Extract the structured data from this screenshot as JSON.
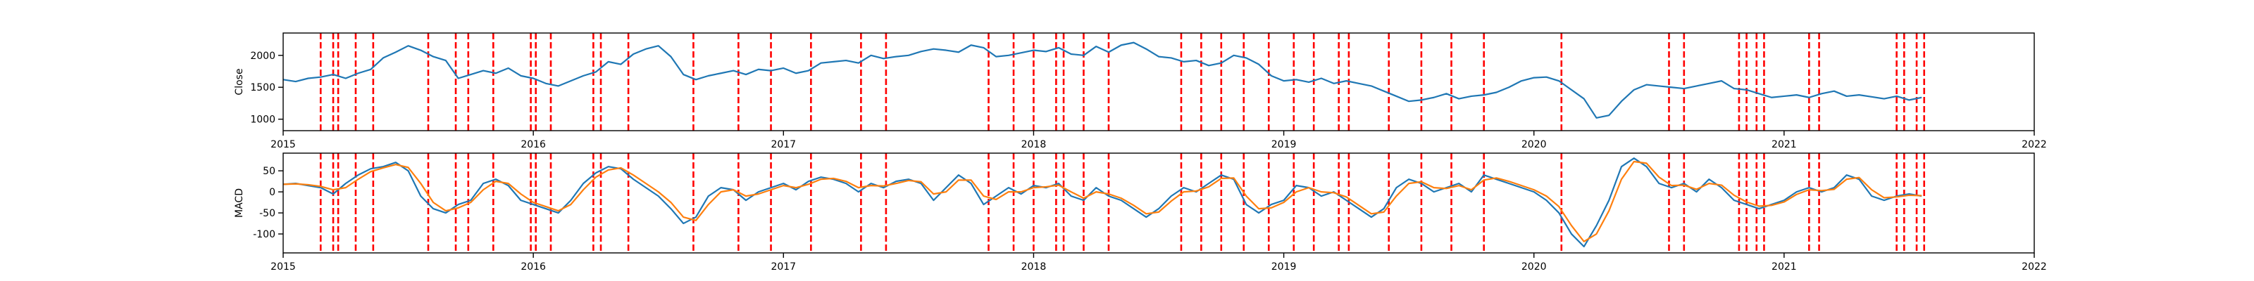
{
  "chart_data": [
    {
      "type": "line",
      "title": "",
      "xlabel": "",
      "ylabel": "Close",
      "xlim": [
        2015,
        2022
      ],
      "ylim": [
        820,
        2350
      ],
      "x_ticks": [
        2015,
        2016,
        2017,
        2018,
        2019,
        2020,
        2021,
        2022
      ],
      "y_ticks": [
        1000,
        1500,
        2000
      ],
      "grid": false,
      "series": [
        {
          "color": "#1f77b4",
          "x": [
            2015.0,
            2015.05,
            2015.1,
            2015.15,
            2015.2,
            2015.25,
            2015.3,
            2015.35,
            2015.4,
            2015.45,
            2015.5,
            2015.55,
            2015.6,
            2015.65,
            2015.7,
            2015.75,
            2015.8,
            2015.85,
            2015.9,
            2015.95,
            2016.0,
            2016.05,
            2016.1,
            2016.15,
            2016.2,
            2016.25,
            2016.3,
            2016.35,
            2016.4,
            2016.45,
            2016.5,
            2016.55,
            2016.6,
            2016.65,
            2016.7,
            2016.75,
            2016.8,
            2016.85,
            2016.9,
            2016.95,
            2017.0,
            2017.05,
            2017.1,
            2017.15,
            2017.2,
            2017.25,
            2017.3,
            2017.35,
            2017.4,
            2017.45,
            2017.5,
            2017.55,
            2017.6,
            2017.65,
            2017.7,
            2017.75,
            2017.8,
            2017.85,
            2017.9,
            2017.95,
            2018.0,
            2018.05,
            2018.1,
            2018.15,
            2018.2,
            2018.25,
            2018.3,
            2018.35,
            2018.4,
            2018.45,
            2018.5,
            2018.55,
            2018.6,
            2018.65,
            2018.7,
            2018.75,
            2018.8,
            2018.85,
            2018.9,
            2018.95,
            2019.0,
            2019.05,
            2019.1,
            2019.15,
            2019.2,
            2019.25,
            2019.3,
            2019.35,
            2019.4,
            2019.45,
            2019.5,
            2019.55,
            2019.6,
            2019.65,
            2019.7,
            2019.75,
            2019.8,
            2019.85,
            2019.9,
            2019.95,
            2020.0,
            2020.05,
            2020.1,
            2020.15,
            2020.2,
            2020.25,
            2020.3,
            2020.35,
            2020.4,
            2020.45,
            2020.5,
            2020.55,
            2020.6,
            2020.65,
            2020.7,
            2020.75,
            2020.8,
            2020.85,
            2020.9,
            2020.95,
            2021.0,
            2021.05,
            2021.1,
            2021.15,
            2021.2,
            2021.25,
            2021.3,
            2021.35,
            2021.4,
            2021.45,
            2021.5,
            2021.55
          ],
          "y": [
            1620,
            1590,
            1640,
            1660,
            1700,
            1640,
            1720,
            1780,
            1960,
            2050,
            2150,
            2080,
            1980,
            1920,
            1640,
            1700,
            1760,
            1720,
            1800,
            1680,
            1640,
            1560,
            1520,
            1600,
            1680,
            1740,
            1900,
            1860,
            2020,
            2100,
            2150,
            1980,
            1700,
            1620,
            1680,
            1720,
            1760,
            1700,
            1780,
            1760,
            1800,
            1720,
            1760,
            1880,
            1900,
            1920,
            1880,
            2000,
            1950,
            1980,
            2000,
            2060,
            2100,
            2080,
            2050,
            2160,
            2120,
            1980,
            2000,
            2040,
            2080,
            2060,
            2120,
            2020,
            2000,
            2140,
            2050,
            2160,
            2200,
            2100,
            1980,
            1960,
            1900,
            1920,
            1840,
            1880,
            2000,
            1960,
            1860,
            1680,
            1600,
            1620,
            1580,
            1640,
            1560,
            1600,
            1560,
            1520,
            1440,
            1360,
            1280,
            1300,
            1340,
            1400,
            1320,
            1360,
            1380,
            1420,
            1500,
            1600,
            1650,
            1660,
            1600,
            1460,
            1320,
            1020,
            1060,
            1280,
            1460,
            1540,
            1520,
            1500,
            1480,
            1520,
            1560,
            1600,
            1480,
            1460,
            1400,
            1340,
            1360,
            1380,
            1340,
            1400,
            1440,
            1360,
            1380,
            1350,
            1320,
            1360,
            1300,
            1340
          ]
        }
      ]
    },
    {
      "type": "line",
      "title": "",
      "xlabel": "",
      "ylabel": "MACD",
      "xlim": [
        2015,
        2022
      ],
      "ylim": [
        -145,
        92
      ],
      "x_ticks": [
        2015,
        2016,
        2017,
        2018,
        2019,
        2020,
        2021,
        2022
      ],
      "y_ticks": [
        -100,
        -50,
        0,
        50
      ],
      "grid": false,
      "series": [
        {
          "color": "#1f77b4",
          "x": [
            2015.0,
            2015.05,
            2015.1,
            2015.15,
            2015.2,
            2015.25,
            2015.3,
            2015.35,
            2015.4,
            2015.45,
            2015.5,
            2015.55,
            2015.6,
            2015.65,
            2015.7,
            2015.75,
            2015.8,
            2015.85,
            2015.9,
            2015.95,
            2016.0,
            2016.05,
            2016.1,
            2016.15,
            2016.2,
            2016.25,
            2016.3,
            2016.35,
            2016.4,
            2016.45,
            2016.5,
            2016.55,
            2016.6,
            2016.65,
            2016.7,
            2016.75,
            2016.8,
            2016.85,
            2016.9,
            2016.95,
            2017.0,
            2017.05,
            2017.1,
            2017.15,
            2017.2,
            2017.25,
            2017.3,
            2017.35,
            2017.4,
            2017.45,
            2017.5,
            2017.55,
            2017.6,
            2017.65,
            2017.7,
            2017.75,
            2017.8,
            2017.85,
            2017.9,
            2017.95,
            2018.0,
            2018.05,
            2018.1,
            2018.15,
            2018.2,
            2018.25,
            2018.3,
            2018.35,
            2018.4,
            2018.45,
            2018.5,
            2018.55,
            2018.6,
            2018.65,
            2018.7,
            2018.75,
            2018.8,
            2018.85,
            2018.9,
            2018.95,
            2019.0,
            2019.05,
            2019.1,
            2019.15,
            2019.2,
            2019.25,
            2019.3,
            2019.35,
            2019.4,
            2019.45,
            2019.5,
            2019.55,
            2019.6,
            2019.65,
            2019.7,
            2019.75,
            2019.8,
            2019.85,
            2019.9,
            2019.95,
            2020.0,
            2020.05,
            2020.1,
            2020.15,
            2020.2,
            2020.25,
            2020.3,
            2020.35,
            2020.4,
            2020.45,
            2020.5,
            2020.55,
            2020.6,
            2020.65,
            2020.7,
            2020.75,
            2020.8,
            2020.85,
            2020.9,
            2020.95,
            2021.0,
            2021.05,
            2021.1,
            2021.15,
            2021.2,
            2021.25,
            2021.3,
            2021.35,
            2021.4,
            2021.45,
            2021.5,
            2021.55
          ],
          "y": [
            18,
            20,
            15,
            10,
            -5,
            20,
            40,
            55,
            60,
            70,
            50,
            -10,
            -40,
            -50,
            -30,
            -20,
            20,
            30,
            15,
            -20,
            -30,
            -40,
            -50,
            -20,
            20,
            45,
            60,
            55,
            30,
            10,
            -10,
            -40,
            -75,
            -60,
            -10,
            10,
            5,
            -20,
            0,
            10,
            20,
            5,
            25,
            35,
            30,
            20,
            0,
            20,
            10,
            25,
            30,
            20,
            -20,
            10,
            40,
            20,
            -30,
            -10,
            10,
            -5,
            15,
            10,
            20,
            -10,
            -20,
            10,
            -10,
            -20,
            -40,
            -60,
            -40,
            -10,
            10,
            0,
            20,
            40,
            30,
            -30,
            -50,
            -30,
            -20,
            15,
            10,
            -10,
            0,
            -20,
            -40,
            -60,
            -40,
            10,
            30,
            20,
            0,
            10,
            20,
            0,
            40,
            30,
            20,
            10,
            0,
            -20,
            -50,
            -100,
            -130,
            -80,
            -20,
            60,
            80,
            60,
            20,
            10,
            20,
            0,
            30,
            10,
            -20,
            -30,
            -40,
            -30,
            -20,
            0,
            10,
            0,
            10,
            40,
            30,
            -10,
            -20,
            -10,
            -5,
            -10
          ]
        },
        {
          "color": "#ff7f0e",
          "x": [
            2015.0,
            2015.05,
            2015.1,
            2015.15,
            2015.2,
            2015.25,
            2015.3,
            2015.35,
            2015.4,
            2015.45,
            2015.5,
            2015.55,
            2015.6,
            2015.65,
            2015.7,
            2015.75,
            2015.8,
            2015.85,
            2015.9,
            2015.95,
            2016.0,
            2016.05,
            2016.1,
            2016.15,
            2016.2,
            2016.25,
            2016.3,
            2016.35,
            2016.4,
            2016.45,
            2016.5,
            2016.55,
            2016.6,
            2016.65,
            2016.7,
            2016.75,
            2016.8,
            2016.85,
            2016.9,
            2016.95,
            2017.0,
            2017.05,
            2017.1,
            2017.15,
            2017.2,
            2017.25,
            2017.3,
            2017.35,
            2017.4,
            2017.45,
            2017.5,
            2017.55,
            2017.6,
            2017.65,
            2017.7,
            2017.75,
            2017.8,
            2017.85,
            2017.9,
            2017.95,
            2018.0,
            2018.05,
            2018.1,
            2018.15,
            2018.2,
            2018.25,
            2018.3,
            2018.35,
            2018.4,
            2018.45,
            2018.5,
            2018.55,
            2018.6,
            2018.65,
            2018.7,
            2018.75,
            2018.8,
            2018.85,
            2018.9,
            2018.95,
            2019.0,
            2019.05,
            2019.1,
            2019.15,
            2019.2,
            2019.25,
            2019.3,
            2019.35,
            2019.4,
            2019.45,
            2019.5,
            2019.55,
            2019.6,
            2019.65,
            2019.7,
            2019.75,
            2019.8,
            2019.85,
            2019.9,
            2019.95,
            2020.0,
            2020.05,
            2020.1,
            2020.15,
            2020.2,
            2020.25,
            2020.3,
            2020.35,
            2020.4,
            2020.45,
            2020.5,
            2020.55,
            2020.6,
            2020.65,
            2020.7,
            2020.75,
            2020.8,
            2020.85,
            2020.9,
            2020.95,
            2021.0,
            2021.05,
            2021.1,
            2021.15,
            2021.2,
            2021.25,
            2021.3,
            2021.35,
            2021.4,
            2021.45,
            2021.5,
            2021.55
          ],
          "y": [
            18,
            19,
            17,
            13,
            5,
            10,
            30,
            48,
            57,
            65,
            58,
            20,
            -25,
            -45,
            -38,
            -25,
            5,
            25,
            20,
            -5,
            -25,
            -35,
            -45,
            -30,
            5,
            35,
            52,
            57,
            40,
            20,
            0,
            -25,
            -60,
            -68,
            -30,
            0,
            5,
            -10,
            -5,
            5,
            15,
            10,
            18,
            30,
            32,
            25,
            10,
            15,
            14,
            20,
            27,
            24,
            -5,
            0,
            28,
            28,
            -10,
            -18,
            0,
            0,
            10,
            12,
            16,
            0,
            -15,
            0,
            -5,
            -15,
            -32,
            -52,
            -48,
            -22,
            0,
            2,
            12,
            32,
            33,
            -10,
            -40,
            -38,
            -25,
            0,
            10,
            0,
            -2,
            -12,
            -32,
            -52,
            -48,
            -10,
            20,
            24,
            10,
            8,
            15,
            5,
            28,
            33,
            25,
            15,
            5,
            -10,
            -35,
            -80,
            -118,
            -100,
            -45,
            30,
            72,
            68,
            35,
            15,
            16,
            6,
            20,
            16,
            -8,
            -24,
            -34,
            -32,
            -24,
            -6,
            5,
            3,
            6,
            30,
            34,
            5,
            -14,
            -12,
            -8,
            -9
          ]
        }
      ]
    }
  ],
  "signal_dates": [
    2015.15,
    2015.2,
    2015.22,
    2015.29,
    2015.36,
    2015.58,
    2015.69,
    2015.74,
    2015.84,
    2015.99,
    2016.01,
    2016.07,
    2016.24,
    2016.27,
    2016.38,
    2016.64,
    2016.82,
    2016.95,
    2017.11,
    2017.31,
    2017.41,
    2017.82,
    2017.92,
    2018.0,
    2018.09,
    2018.12,
    2018.2,
    2018.3,
    2018.59,
    2018.67,
    2018.75,
    2018.84,
    2018.94,
    2019.04,
    2019.12,
    2019.22,
    2019.26,
    2019.42,
    2019.55,
    2019.67,
    2019.8,
    2020.11,
    2020.54,
    2020.6,
    2020.82,
    2020.85,
    2020.89,
    2020.92,
    2021.1,
    2021.14,
    2021.45,
    2021.48,
    2021.53,
    2021.56
  ],
  "signal_color": "#ff0000"
}
